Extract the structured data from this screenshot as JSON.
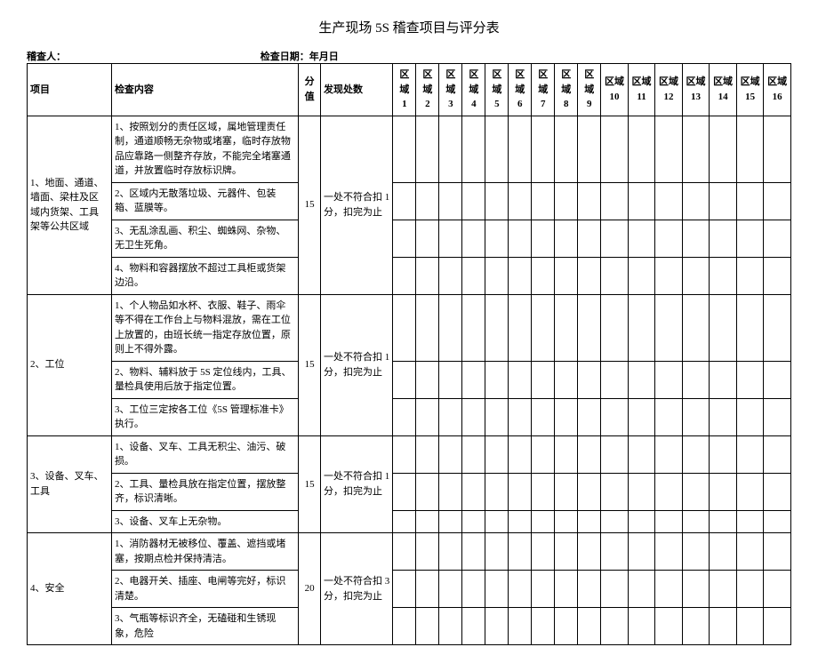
{
  "title": "生产现场 5S 稽查项目与评分表",
  "meta": {
    "auditor_label": "稽查人：",
    "date_label": "检查日期：年月日"
  },
  "headers": {
    "item": "项目",
    "content": "检查内容",
    "score": "分值",
    "found": "发现处数",
    "areas": [
      "区域 1",
      "区域 2",
      "区域 3",
      "区域 4",
      "区域 5",
      "区域 6",
      "区域 7",
      "区域 8",
      "区域 9",
      "区域 10",
      "区域 11",
      "区域 12",
      "区域 13",
      "区域 14",
      "区域 15",
      "区域 16"
    ]
  },
  "rows": [
    {
      "item": "1、地面、通道、墙面、梁柱及区域内货架、工具架等公共区域",
      "score": "15",
      "found": "一处不符合扣 1 分，扣完为止",
      "contents": [
        "1、按照划分的责任区域，属地管理责任制，通道顺畅无杂物或堵塞，临时存放物品应靠路一侧整齐存放，不能完全堵塞通道，并放置临时存放标识牌。",
        "2、区域内无散落垃圾、元器件、包装箱、蓝膜等。",
        "3、无乱涂乱画、积尘、蜘蛛网、杂物、无卫生死角。",
        "4、物料和容器摆放不超过工具柜或货架边沿。"
      ]
    },
    {
      "item": "2、工位",
      "score": "15",
      "found": "一处不符合扣 1 分，扣完为止",
      "contents": [
        "1、个人物品如水杯、衣服、鞋子、雨伞等不得在工作台上与物料混放，需在工位上放置的，由班长统一指定存放位置，原则上不得外露。",
        "2、物料、辅料放于 5S 定位线内，工具、量检具使用后放于指定位置。",
        "3、工位三定按各工位《5S 管理标准卡》执行。"
      ]
    },
    {
      "item": "3、设备、叉车、工具",
      "score": "15",
      "found": "一处不符合扣 1 分，扣完为止",
      "contents": [
        "1、设备、叉车、工具无积尘、油污、破损。",
        "2、工具、量检具放在指定位置，摆放整齐，标识清晰。",
        "3、设备、叉车上无杂物。"
      ]
    },
    {
      "item": "4、安全",
      "score": "20",
      "found": "一处不符合扣 3 分，扣完为止",
      "contents": [
        "1、消防器材无被移位、覆盖、遮挡或堵塞，按期点检并保持清洁。",
        "2、电器开关、插座、电闸等完好，标识清楚。",
        "3、气瓶等标识齐全，无磕碰和生锈现象，危险"
      ]
    }
  ]
}
